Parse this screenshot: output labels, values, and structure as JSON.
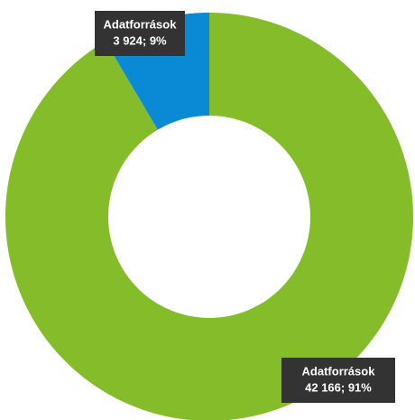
{
  "chart_data": {
    "type": "donut",
    "categories": [
      "Adatforrások",
      "Adatforrások"
    ],
    "values": [
      42166,
      3924
    ],
    "value_labels": [
      "42 166; 91%",
      "3 924; 9%"
    ],
    "colors": [
      "#84bc2a",
      "#0a8ad4"
    ]
  }
}
